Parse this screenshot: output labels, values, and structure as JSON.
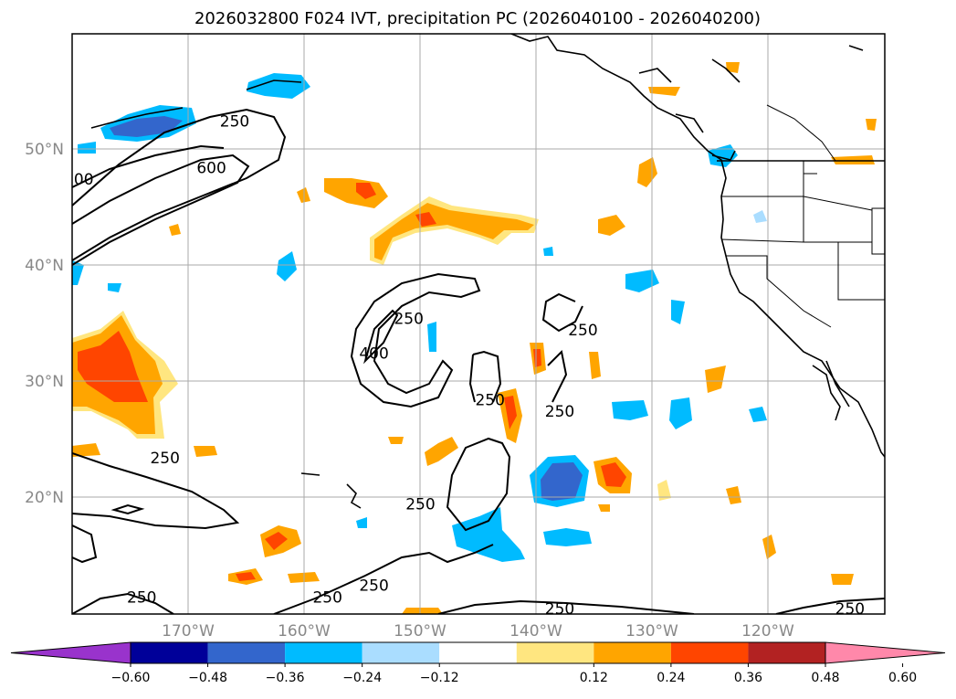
{
  "title": "2026032800 F024 IVT, precipitation PC (2026040100 - 2026040200)",
  "colors": {
    "land_outline": "#000000",
    "grid": "#aaaaaa",
    "contour": "#000000"
  },
  "map": {
    "lon_range": [
      -180,
      -110
    ],
    "lat_range": [
      10,
      60
    ],
    "lat_labels": [
      "50°N",
      "40°N",
      "30°N",
      "20°N"
    ],
    "lon_labels": [
      "170°W",
      "160°W",
      "150°W",
      "140°W",
      "130°W",
      "120°W"
    ],
    "contour_labels": [
      {
        "text": "250",
        "lon": -166,
        "lat": 52
      },
      {
        "text": "600",
        "lon": -168,
        "lat": 48
      },
      {
        "text": "00",
        "lon": -179,
        "lat": 47
      },
      {
        "text": "250",
        "lon": -151,
        "lat": 35
      },
      {
        "text": "400",
        "lon": -154,
        "lat": 32
      },
      {
        "text": "250",
        "lon": -136,
        "lat": 34
      },
      {
        "text": "250",
        "lon": -144,
        "lat": 28
      },
      {
        "text": "250",
        "lon": -138,
        "lat": 27
      },
      {
        "text": "250",
        "lon": -172,
        "lat": 23
      },
      {
        "text": "250",
        "lon": -150,
        "lat": 19
      },
      {
        "text": "250",
        "lon": -174,
        "lat": 11
      },
      {
        "text": "250",
        "lon": -158,
        "lat": 11
      },
      {
        "text": "250",
        "lon": -154,
        "lat": 12
      },
      {
        "text": "250",
        "lon": -138,
        "lat": 10
      },
      {
        "text": "250",
        "lon": -113,
        "lat": 10
      }
    ]
  },
  "colorbar": {
    "ticks": [
      "−0.60",
      "−0.48",
      "−0.36",
      "−0.24",
      "−0.12",
      "0.12",
      "0.24",
      "0.36",
      "0.48",
      "0.60"
    ],
    "colors": [
      "#9933cc",
      "#000099",
      "#3366cc",
      "#00bbff",
      "#aaddff",
      "#ffffff",
      "#ffe680",
      "#ffa500",
      "#ff4500",
      "#b22222",
      "#ff88aa"
    ]
  }
}
